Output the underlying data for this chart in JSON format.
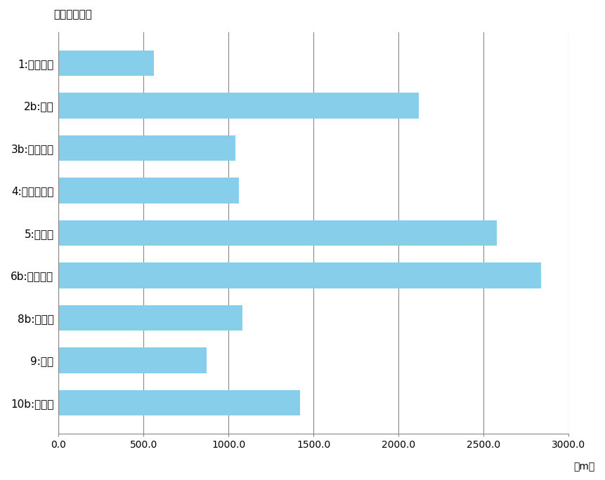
{
  "categories": [
    "1:医療機器",
    "2b:材料",
    "3b:リネン類",
    "4:不潔リネン",
    "5:廃棄物",
    "6b:食事搬送",
    "8b:医薬品",
    "9:検査",
    "10b:滅菌材"
  ],
  "values": [
    560,
    2120,
    1040,
    1060,
    2580,
    2840,
    1080,
    870,
    1420
  ],
  "bar_color": "#87CEEB",
  "ylabel_top": "（物流種別）",
  "xlabel_right": "（m）",
  "xlim": [
    0,
    3000
  ],
  "xticks": [
    0,
    500,
    1000,
    1500,
    2000,
    2500,
    3000
  ],
  "xtick_labels": [
    "0.0",
    "500.0",
    "1000.0",
    "1500.0",
    "2000.0",
    "2500.0",
    "3000.0"
  ],
  "grid_color": "#888888",
  "bar_height": 0.6,
  "background_color": "#ffffff"
}
